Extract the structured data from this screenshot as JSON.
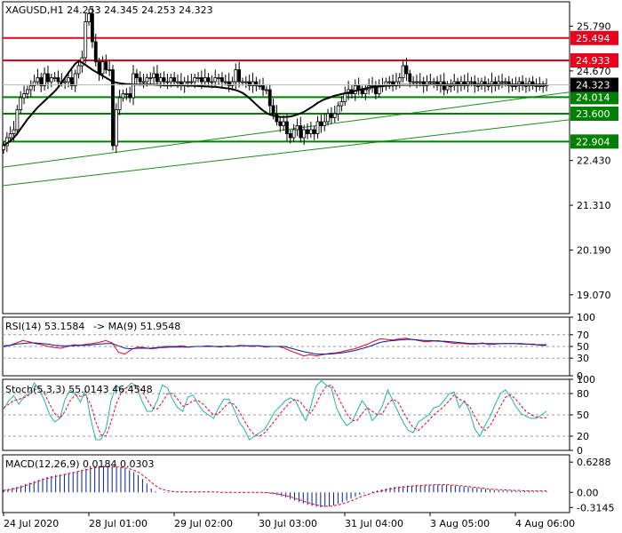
{
  "chart_data": [
    {
      "panel": "price",
      "type": "candlestick",
      "title": "XAGUSD,H1",
      "ohlc_header": [
        "24.253",
        "24.345",
        "24.253",
        "24.323"
      ],
      "ylim": [
        18.6,
        26.4
      ],
      "y_ticks": [
        "25.790",
        "24.670",
        "22.430",
        "21.310",
        "20.190",
        "19.070"
      ],
      "current_price": 24.323,
      "current_price_label": "24.323",
      "levels": [
        {
          "value": 25.494,
          "label": "25.494",
          "color": "#e8001c"
        },
        {
          "value": 24.933,
          "label": "24.933",
          "color": "#e8001c"
        },
        {
          "value": 24.014,
          "label": "24.014",
          "color": "#008000"
        },
        {
          "value": 23.6,
          "label": "23.600",
          "color": "#008000"
        },
        {
          "value": 22.904,
          "label": "22.904",
          "color": "#008000"
        }
      ],
      "trendlines": [
        {
          "x": [
            0,
            161
          ],
          "y": [
            22.26,
            24.14
          ]
        },
        {
          "x": [
            0,
            161
          ],
          "y": [
            21.8,
            23.45
          ]
        }
      ],
      "moving_average": [
        22.8,
        22.86,
        22.92,
        23.0,
        23.1,
        23.22,
        23.34,
        23.46,
        23.56,
        23.66,
        23.76,
        23.84,
        23.92,
        24.0,
        24.08,
        24.16,
        24.26,
        24.38,
        24.5,
        24.62,
        24.74,
        24.85,
        24.92,
        24.88,
        24.82,
        24.76,
        24.7,
        24.65,
        24.6,
        24.55,
        24.5,
        24.45,
        24.4,
        24.38,
        24.36,
        24.35,
        24.34,
        24.34,
        24.33,
        24.33,
        24.33,
        24.33,
        24.33,
        24.33,
        24.33,
        24.32,
        24.32,
        24.31,
        24.31,
        24.31,
        24.31,
        24.31,
        24.31,
        24.31,
        24.3,
        24.3,
        24.3,
        24.29,
        24.29,
        24.28,
        24.28,
        24.27,
        24.27,
        24.26,
        24.25,
        24.24,
        24.23,
        24.21,
        24.19,
        24.16,
        24.12,
        24.06,
        23.99,
        23.91,
        23.83,
        23.75,
        23.68,
        23.62,
        23.58,
        23.55,
        23.53,
        23.52,
        23.52,
        23.52,
        23.53,
        23.55,
        23.58,
        23.61,
        23.65,
        23.7,
        23.75,
        23.81,
        23.87,
        23.92,
        23.96,
        23.99,
        24.02,
        24.05,
        24.07,
        24.09,
        24.11,
        24.13,
        24.15,
        24.17,
        24.19,
        24.21,
        24.23,
        24.25,
        24.26,
        24.27,
        24.28,
        24.29,
        24.3,
        24.3,
        24.31,
        24.31,
        24.32,
        24.32,
        24.32,
        24.32,
        24.32,
        24.32,
        24.32,
        24.32,
        24.32,
        24.33,
        24.33,
        24.33,
        24.33,
        24.33,
        24.33,
        24.33,
        24.33,
        24.33,
        24.33,
        24.33,
        24.33,
        24.33,
        24.33,
        24.33,
        24.33,
        24.33,
        24.33,
        24.33,
        24.33,
        24.33,
        24.33,
        24.33,
        24.33,
        24.33,
        24.33,
        24.33,
        24.33,
        24.33,
        24.33,
        24.33,
        24.33,
        24.33,
        24.33,
        24.33
      ],
      "closes": [
        22.8,
        23.0,
        23.1,
        23.2,
        23.7,
        24.0,
        24.1,
        24.2,
        24.3,
        24.4,
        24.5,
        24.3,
        24.6,
        24.4,
        24.5,
        24.5,
        24.4,
        24.4,
        24.4,
        24.5,
        24.3,
        24.6,
        24.8,
        25.0,
        25.9,
        26.1,
        25.4,
        24.9,
        24.6,
        24.9,
        24.7,
        24.7,
        22.8,
        23.7,
        24.0,
        24.1,
        24.1,
        24.0,
        24.6,
        24.5,
        24.4,
        24.4,
        24.5,
        24.5,
        24.6,
        24.4,
        24.5,
        24.4,
        24.4,
        24.5,
        24.4,
        24.4,
        24.3,
        24.4,
        24.4,
        24.4,
        24.5,
        24.5,
        24.4,
        24.5,
        24.4,
        24.4,
        24.5,
        24.5,
        24.4,
        24.4,
        24.3,
        24.4,
        24.7,
        24.4,
        24.4,
        24.4,
        24.3,
        24.4,
        24.3,
        24.3,
        24.2,
        24.2,
        23.8,
        23.6,
        23.4,
        23.3,
        23.4,
        23.1,
        23.0,
        23.2,
        23.3,
        23.0,
        23.2,
        23.1,
        23.2,
        23.1,
        23.4,
        23.3,
        23.4,
        23.6,
        23.5,
        23.6,
        23.8,
        23.9,
        24.1,
        24.2,
        24.1,
        24.3,
        24.2,
        24.1,
        24.2,
        24.3,
        24.3,
        24.1,
        24.3,
        24.3,
        24.4,
        24.4,
        24.3,
        24.4,
        24.5,
        24.8,
        24.6,
        24.4,
        24.4,
        24.4,
        24.4,
        24.3,
        24.4,
        24.4,
        24.4,
        24.3,
        24.4,
        24.2,
        24.3,
        24.3,
        24.4,
        24.3,
        24.4,
        24.3,
        24.4,
        24.4,
        24.3,
        24.3,
        24.4,
        24.3,
        24.3,
        24.4,
        24.3,
        24.4,
        24.4,
        24.4,
        24.3,
        24.3,
        24.3,
        24.4,
        24.3,
        24.3,
        24.4,
        24.3,
        24.3,
        24.3,
        24.3,
        24.32
      ],
      "x_labels": [
        "24 Jul 2020",
        "28 Jul 01:00",
        "29 Jul 02:00",
        "30 Jul 03:00",
        "31 Jul 04:00",
        "3 Aug 05:00",
        "4 Aug 06:00"
      ]
    },
    {
      "panel": "rsi",
      "type": "line",
      "title": "RSI(14) 53.1584",
      "ma_label": "MA(9) 51.9548",
      "ylim": [
        0,
        100
      ],
      "levels": [
        70,
        50,
        30
      ],
      "y_ticks": [
        "100",
        "70",
        "50",
        "30",
        "0"
      ],
      "series": [
        {
          "values": [
            49,
            52,
            56,
            60,
            58,
            55,
            53,
            50,
            48,
            47,
            50,
            53,
            52,
            54,
            55,
            57,
            60,
            56,
            40,
            37,
            45,
            49,
            48,
            46,
            47,
            50,
            50,
            50,
            51,
            49,
            50,
            50,
            51,
            50,
            49,
            51,
            50,
            52,
            51,
            50,
            51,
            49,
            50,
            50,
            47,
            42,
            38,
            34,
            36,
            34,
            36,
            38,
            39,
            41,
            44,
            46,
            50,
            54,
            59,
            63,
            62,
            61,
            63,
            64,
            62,
            60,
            58,
            59,
            60,
            58,
            56,
            55,
            55,
            54,
            54,
            56,
            53,
            54,
            55,
            55,
            55,
            54,
            54,
            53,
            53,
            53
          ],
          "color": "#e8001c"
        },
        {
          "values": [
            51,
            52,
            54,
            55,
            56,
            56,
            55,
            54,
            52,
            51,
            51,
            51,
            52,
            52,
            53,
            54,
            55,
            55,
            51,
            47,
            46,
            47,
            47,
            47,
            48,
            48,
            49,
            49,
            49,
            49,
            50,
            50,
            50,
            50,
            50,
            50,
            50,
            51,
            51,
            51,
            51,
            50,
            50,
            50,
            50,
            47,
            44,
            41,
            39,
            37,
            37,
            37,
            38,
            39,
            41,
            43,
            46,
            49,
            53,
            57,
            59,
            60,
            61,
            62,
            62,
            61,
            60,
            60,
            59,
            59,
            58,
            57,
            56,
            55,
            55,
            55,
            55,
            55,
            55,
            55,
            55,
            55,
            54,
            54,
            52,
            52
          ],
          "color": "#001f9e"
        }
      ]
    },
    {
      "panel": "stochastic",
      "type": "line",
      "title": "Stoch(5,3,3) 55.0143 46.4548",
      "ylim": [
        0,
        100
      ],
      "levels": [
        80,
        50,
        20
      ],
      "y_ticks": [
        "100",
        "80",
        "50",
        "20",
        "0"
      ],
      "series": [
        {
          "values": [
            58,
            70,
            77,
            65,
            76,
            80,
            95,
            85,
            70,
            50,
            40,
            45,
            72,
            85,
            80,
            68,
            85,
            45,
            15,
            15,
            30,
            70,
            92,
            85,
            88,
            95,
            90,
            70,
            55,
            55,
            70,
            92,
            88,
            72,
            60,
            55,
            75,
            78,
            65,
            55,
            50,
            45,
            60,
            72,
            72,
            58,
            40,
            30,
            15,
            20,
            25,
            30,
            42,
            55,
            62,
            70,
            74,
            70,
            55,
            42,
            62,
            90,
            98,
            92,
            88,
            60,
            45,
            35,
            40,
            55,
            70,
            60,
            42,
            50,
            63,
            85,
            70,
            55,
            40,
            28,
            25,
            40,
            45,
            50,
            60,
            62,
            70,
            80,
            82,
            60,
            70,
            55,
            30,
            20,
            35,
            48,
            65,
            80,
            85,
            75,
            62,
            52,
            48,
            45,
            45,
            50,
            55
          ],
          "color": "#20b2aa"
        },
        {
          "values": [
            60,
            65,
            70,
            72,
            74,
            78,
            85,
            88,
            80,
            65,
            52,
            45,
            55,
            70,
            78,
            76,
            78,
            65,
            40,
            22,
            20,
            40,
            65,
            82,
            88,
            90,
            92,
            85,
            72,
            60,
            58,
            68,
            80,
            80,
            72,
            62,
            65,
            70,
            70,
            65,
            57,
            50,
            52,
            60,
            67,
            65,
            55,
            42,
            30,
            22,
            20,
            25,
            33,
            42,
            52,
            60,
            68,
            72,
            68,
            58,
            52,
            65,
            80,
            90,
            92,
            80,
            65,
            52,
            42,
            42,
            52,
            60,
            55,
            50,
            52,
            65,
            72,
            68,
            55,
            42,
            32,
            28,
            35,
            42,
            50,
            56,
            62,
            70,
            78,
            72,
            68,
            62,
            48,
            35,
            28,
            35,
            48,
            62,
            75,
            78,
            72,
            63,
            55,
            50,
            47,
            46,
            46
          ],
          "color": "#e8001c"
        }
      ]
    },
    {
      "panel": "macd",
      "type": "bar",
      "title": "MACD(12,26,9) 0.0184 0.0303",
      "ylim": [
        -0.42,
        0.78
      ],
      "y_ticks": [
        "0.6288",
        "0.00",
        "-0.3145"
      ],
      "histogram": [
        0.05,
        0.07,
        0.09,
        0.11,
        0.14,
        0.17,
        0.2,
        0.23,
        0.26,
        0.29,
        0.32,
        0.34,
        0.36,
        0.37,
        0.38,
        0.4,
        0.42,
        0.44,
        0.46,
        0.49,
        0.52,
        0.54,
        0.55,
        0.55,
        0.55,
        0.54,
        0.53,
        0.52,
        0.5,
        0.46,
        0.42,
        0.36,
        0.28,
        0.18,
        0.08,
        0.02,
        0.0,
        -0.01,
        -0.01,
        0.0,
        0.0,
        0.01,
        0.01,
        0.01,
        0.01,
        0.01,
        0.01,
        0.0,
        0.0,
        0.0,
        0.0,
        0.0,
        0.0,
        0.0,
        0.0,
        0.0,
        0.0,
        0.0,
        0.0,
        0.0,
        -0.01,
        -0.02,
        -0.04,
        -0.06,
        -0.08,
        -0.11,
        -0.14,
        -0.17,
        -0.2,
        -0.23,
        -0.26,
        -0.28,
        -0.3,
        -0.31,
        -0.3,
        -0.29,
        -0.27,
        -0.24,
        -0.21,
        -0.17,
        -0.13,
        -0.09,
        -0.05,
        -0.02,
        0.0,
        0.02,
        0.04,
        0.06,
        0.08,
        0.1,
        0.11,
        0.12,
        0.13,
        0.14,
        0.14,
        0.15,
        0.15,
        0.16,
        0.16,
        0.16,
        0.16,
        0.16,
        0.15,
        0.15,
        0.14,
        0.13,
        0.12,
        0.11,
        0.1,
        0.09,
        0.08,
        0.07,
        0.06,
        0.05,
        0.05,
        0.04,
        0.04,
        0.04,
        0.03,
        0.03,
        0.03,
        0.03,
        0.02,
        0.02,
        0.02,
        0.02
      ],
      "signal": [
        0.04,
        0.05,
        0.07,
        0.09,
        0.11,
        0.14,
        0.17,
        0.2,
        0.23,
        0.26,
        0.29,
        0.31,
        0.33,
        0.35,
        0.37,
        0.39,
        0.41,
        0.43,
        0.45,
        0.47,
        0.49,
        0.51,
        0.52,
        0.53,
        0.53,
        0.53,
        0.53,
        0.52,
        0.51,
        0.49,
        0.46,
        0.42,
        0.36,
        0.29,
        0.21,
        0.14,
        0.08,
        0.05,
        0.03,
        0.02,
        0.01,
        0.01,
        0.01,
        0.01,
        0.01,
        0.01,
        0.01,
        0.01,
        0.01,
        0.01,
        0.0,
        0.0,
        0.0,
        0.0,
        0.0,
        0.0,
        0.0,
        0.0,
        0.0,
        0.0,
        0.0,
        -0.01,
        -0.02,
        -0.03,
        -0.05,
        -0.07,
        -0.09,
        -0.12,
        -0.15,
        -0.18,
        -0.21,
        -0.24,
        -0.26,
        -0.28,
        -0.29,
        -0.29,
        -0.28,
        -0.26,
        -0.24,
        -0.21,
        -0.18,
        -0.14,
        -0.1,
        -0.07,
        -0.04,
        -0.01,
        0.01,
        0.03,
        0.05,
        0.07,
        0.09,
        0.1,
        0.11,
        0.12,
        0.13,
        0.14,
        0.14,
        0.15,
        0.15,
        0.16,
        0.16,
        0.16,
        0.16,
        0.15,
        0.15,
        0.14,
        0.13,
        0.12,
        0.11,
        0.1,
        0.09,
        0.08,
        0.07,
        0.06,
        0.06,
        0.05,
        0.05,
        0.04,
        0.04,
        0.04,
        0.03,
        0.03,
        0.03,
        0.03,
        0.03,
        0.03
      ]
    }
  ]
}
